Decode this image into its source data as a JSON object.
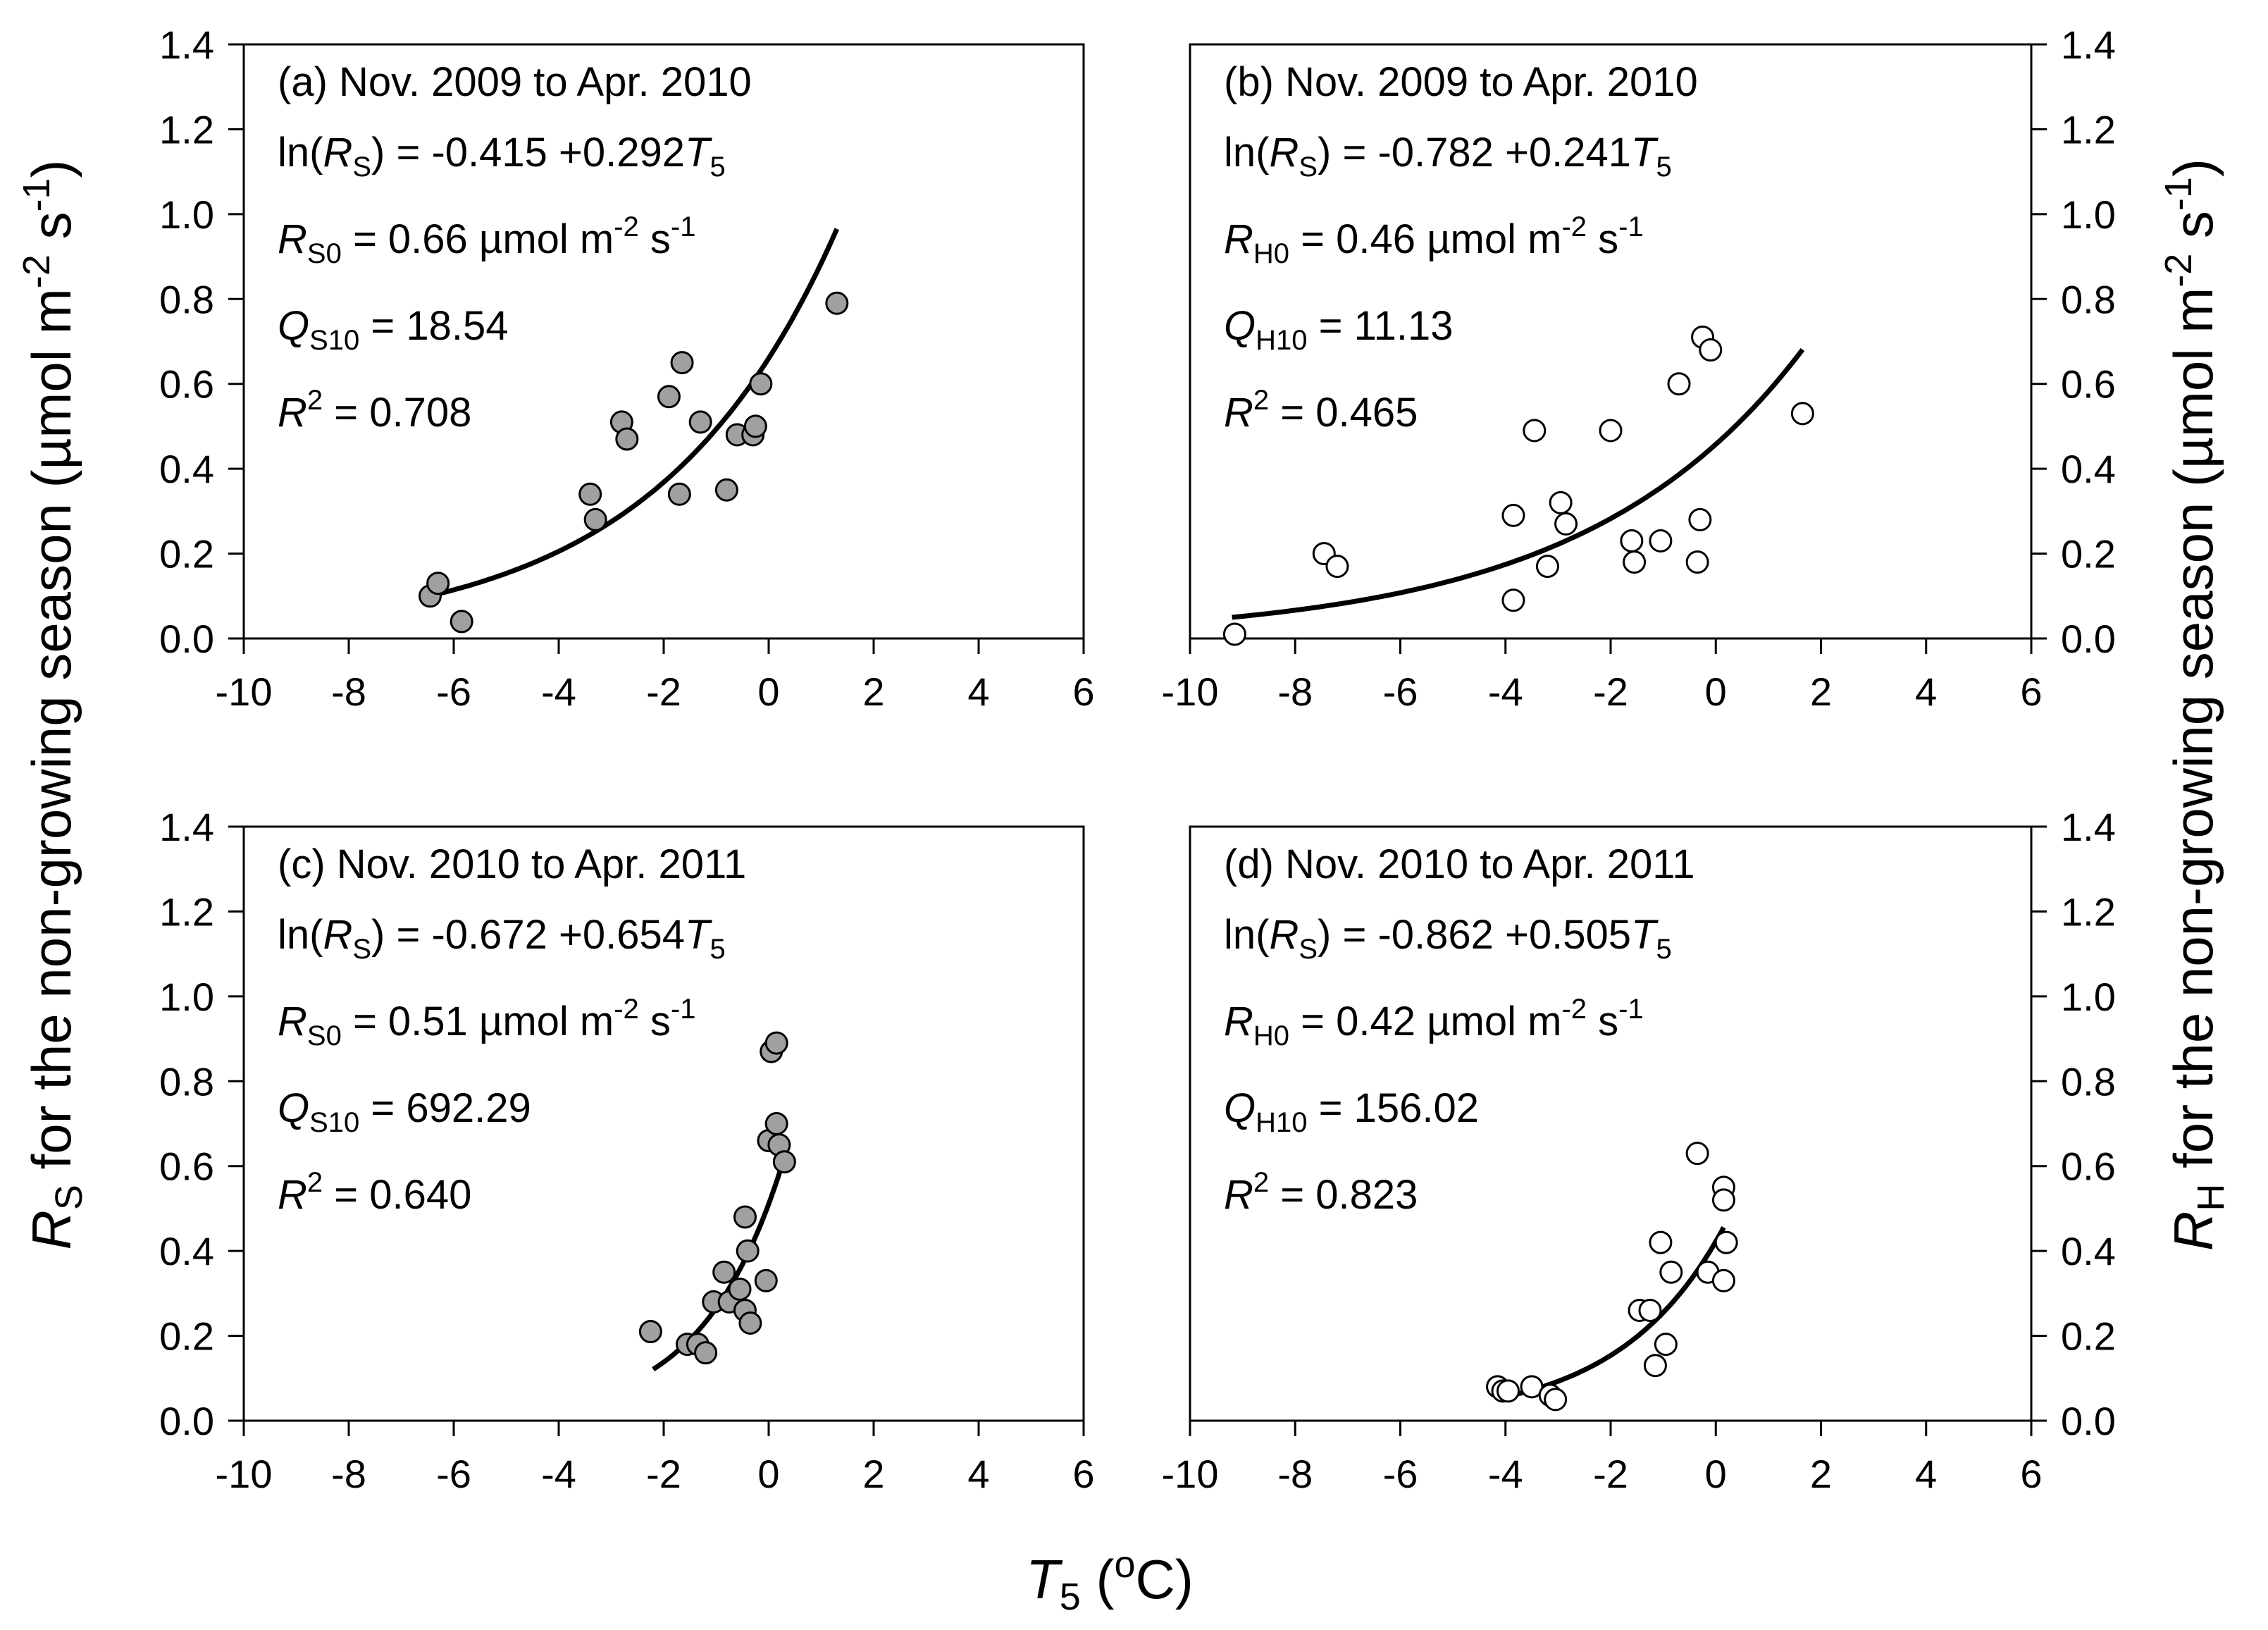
{
  "figure": {
    "ylabel_left": {
      "main": "R",
      "sub": "S",
      "rest": " for the non-growing season (µmol m",
      "sup1": "-2",
      "mid": " s",
      "sup2": "-1",
      "end": ")"
    },
    "ylabel_right": {
      "main": "R",
      "sub": "H",
      "rest": " for the non-growing season (µmol m",
      "sup1": "-2",
      "mid": " s",
      "sup2": "-1",
      "end": ")"
    },
    "xlabel": {
      "main": "T",
      "sub": "5",
      "open": " (",
      "sup": "o",
      "unit": "C)"
    }
  },
  "colors": {
    "filled_marker": "#a0a0a0",
    "open_marker": "#ffffff",
    "line": "#000000",
    "axis": "#000000"
  },
  "chart_data": [
    {
      "type": "scatter",
      "panel": "a",
      "marker": "filled",
      "title": "(a) Nov. 2009 to Apr. 2010",
      "equation": {
        "prefix": "ln(",
        "var": "R",
        "var_sub": "S",
        "middle": ") = -0.415 +0.292",
        "t": "T",
        "t_sub": "5"
      },
      "r0": {
        "var": "R",
        "sub": "S0",
        "text": " = 0.66 µmol m",
        "sup1": "-2",
        "mid": " s",
        "sup2": "-1"
      },
      "q10": {
        "var": "Q",
        "sub": "S10",
        "text": " = 18.54"
      },
      "r2": {
        "var": "R",
        "sup": "2",
        "text": " = 0.708"
      },
      "xlim": [
        -10,
        6
      ],
      "ylim": [
        0,
        1.4
      ],
      "xticks": [
        -10,
        -8,
        -6,
        -4,
        -2,
        0,
        2,
        4,
        6
      ],
      "yticks": [
        0,
        0.2,
        0.4,
        0.6,
        0.8,
        1.0,
        1.2,
        1.4
      ],
      "ytick_labels": [
        "0.0",
        "0.2",
        "0.4",
        "0.6",
        "0.8",
        "1.0",
        "1.2",
        "1.4"
      ],
      "fit": {
        "a": -0.415,
        "b": 0.292,
        "xmin": -6.5,
        "xmax": 1.3
      },
      "points": [
        {
          "x": -6.45,
          "y": 0.1
        },
        {
          "x": -6.3,
          "y": 0.13
        },
        {
          "x": -5.85,
          "y": 0.04
        },
        {
          "x": -3.4,
          "y": 0.34
        },
        {
          "x": -3.3,
          "y": 0.28
        },
        {
          "x": -2.8,
          "y": 0.51
        },
        {
          "x": -2.7,
          "y": 0.47
        },
        {
          "x": -1.9,
          "y": 0.57
        },
        {
          "x": -1.65,
          "y": 0.65
        },
        {
          "x": -1.7,
          "y": 0.34
        },
        {
          "x": -1.3,
          "y": 0.51
        },
        {
          "x": -0.8,
          "y": 0.35
        },
        {
          "x": -0.6,
          "y": 0.48
        },
        {
          "x": -0.3,
          "y": 0.48
        },
        {
          "x": -0.25,
          "y": 0.5
        },
        {
          "x": -0.15,
          "y": 0.6
        },
        {
          "x": 1.3,
          "y": 0.79
        }
      ]
    },
    {
      "type": "scatter",
      "panel": "b",
      "marker": "open",
      "title": "(b) Nov. 2009 to Apr. 2010",
      "equation": {
        "prefix": "ln(",
        "var": "R",
        "var_sub": "S",
        "middle": ") = -0.782 +0.241",
        "t": "T",
        "t_sub": "5"
      },
      "r0": {
        "var": "R",
        "sub": "H0",
        "text": " = 0.46 µmol m",
        "sup1": "-2",
        "mid": " s",
        "sup2": "-1"
      },
      "q10": {
        "var": "Q",
        "sub": "H10",
        "text": " = 11.13"
      },
      "r2": {
        "var": "R",
        "sup": "2",
        "text": " = 0.465"
      },
      "xlim": [
        -10,
        6
      ],
      "ylim": [
        0,
        1.4
      ],
      "xticks": [
        -10,
        -8,
        -6,
        -4,
        -2,
        0,
        2,
        4,
        6
      ],
      "yticks": [
        0,
        0.2,
        0.4,
        0.6,
        0.8,
        1.0,
        1.2,
        1.4
      ],
      "ytick_labels": [
        "0.0",
        "0.2",
        "0.4",
        "0.6",
        "0.8",
        "1.0",
        "1.2",
        "1.4"
      ],
      "fit": {
        "a": -0.782,
        "b": 0.241,
        "xmin": -9.2,
        "xmax": 1.65
      },
      "points": [
        {
          "x": -9.15,
          "y": 0.01
        },
        {
          "x": -7.45,
          "y": 0.2
        },
        {
          "x": -7.2,
          "y": 0.17
        },
        {
          "x": -3.85,
          "y": 0.29
        },
        {
          "x": -3.85,
          "y": 0.09
        },
        {
          "x": -3.45,
          "y": 0.49
        },
        {
          "x": -3.2,
          "y": 0.17
        },
        {
          "x": -2.95,
          "y": 0.32
        },
        {
          "x": -2.85,
          "y": 0.27
        },
        {
          "x": -2.0,
          "y": 0.49
        },
        {
          "x": -1.6,
          "y": 0.23
        },
        {
          "x": -1.55,
          "y": 0.18
        },
        {
          "x": -1.05,
          "y": 0.23
        },
        {
          "x": -0.7,
          "y": 0.6
        },
        {
          "x": -0.35,
          "y": 0.18
        },
        {
          "x": -0.3,
          "y": 0.28
        },
        {
          "x": -0.25,
          "y": 0.71
        },
        {
          "x": -0.1,
          "y": 0.68
        },
        {
          "x": 1.65,
          "y": 0.53
        }
      ]
    },
    {
      "type": "scatter",
      "panel": "c",
      "marker": "filled",
      "title": "(c) Nov. 2010 to Apr. 2011",
      "equation": {
        "prefix": "ln(",
        "var": "R",
        "var_sub": "S",
        "middle": ") = -0.672 +0.654",
        "t": "T",
        "t_sub": "5"
      },
      "r0": {
        "var": "R",
        "sub": "S0",
        "text": " = 0.51 µmol m",
        "sup1": "-2",
        "mid": " s",
        "sup2": "-1"
      },
      "q10": {
        "var": "Q",
        "sub": "S10",
        "text": " = 692.29"
      },
      "r2": {
        "var": "R",
        "sup": "2",
        "text": " = 0.640"
      },
      "xlim": [
        -10,
        6
      ],
      "ylim": [
        0,
        1.4
      ],
      "xticks": [
        -10,
        -8,
        -6,
        -4,
        -2,
        0,
        2,
        4,
        6
      ],
      "yticks": [
        0,
        0.2,
        0.4,
        0.6,
        0.8,
        1.0,
        1.2,
        1.4
      ],
      "ytick_labels": [
        "0.0",
        "0.2",
        "0.4",
        "0.6",
        "0.8",
        "1.0",
        "1.2",
        "1.4"
      ],
      "fit": {
        "a": -0.672,
        "b": 0.654,
        "xmin": -2.2,
        "xmax": 0.25
      },
      "points": [
        {
          "x": -2.25,
          "y": 0.21
        },
        {
          "x": -1.55,
          "y": 0.18
        },
        {
          "x": -1.35,
          "y": 0.18
        },
        {
          "x": -1.2,
          "y": 0.16
        },
        {
          "x": -1.05,
          "y": 0.28
        },
        {
          "x": -0.85,
          "y": 0.35
        },
        {
          "x": -0.75,
          "y": 0.28
        },
        {
          "x": -0.55,
          "y": 0.31
        },
        {
          "x": -0.45,
          "y": 0.48
        },
        {
          "x": -0.45,
          "y": 0.26
        },
        {
          "x": -0.4,
          "y": 0.4
        },
        {
          "x": -0.35,
          "y": 0.23
        },
        {
          "x": -0.05,
          "y": 0.33
        },
        {
          "x": 0.0,
          "y": 0.66
        },
        {
          "x": 0.05,
          "y": 0.87
        },
        {
          "x": 0.15,
          "y": 0.7
        },
        {
          "x": 0.15,
          "y": 0.89
        },
        {
          "x": 0.2,
          "y": 0.65
        },
        {
          "x": 0.3,
          "y": 0.61
        }
      ]
    },
    {
      "type": "scatter",
      "panel": "d",
      "marker": "open",
      "title": "(d) Nov. 2010 to Apr. 2011",
      "equation": {
        "prefix": "ln(",
        "var": "R",
        "var_sub": "S",
        "middle": ") = -0.862 +0.505",
        "t": "T",
        "t_sub": "5"
      },
      "r0": {
        "var": "R",
        "sub": "H0",
        "text": " = 0.42 µmol m",
        "sup1": "-2",
        "mid": " s",
        "sup2": "-1"
      },
      "q10": {
        "var": "Q",
        "sub": "H10",
        "text": " = 156.02"
      },
      "r2": {
        "var": "R",
        "sup": "2",
        "text": " = 0.823"
      },
      "xlim": [
        -10,
        6
      ],
      "ylim": [
        0,
        1.4
      ],
      "xticks": [
        -10,
        -8,
        -6,
        -4,
        -2,
        0,
        2,
        4,
        6
      ],
      "yticks": [
        0,
        0.2,
        0.4,
        0.6,
        0.8,
        1.0,
        1.2,
        1.4
      ],
      "ytick_labels": [
        "0.0",
        "0.2",
        "0.4",
        "0.6",
        "0.8",
        "1.0",
        "1.2",
        "1.4"
      ],
      "fit": {
        "a": -0.862,
        "b": 0.505,
        "xmin": -3.9,
        "xmax": 0.15
      },
      "points": [
        {
          "x": -4.15,
          "y": 0.08
        },
        {
          "x": -4.05,
          "y": 0.07
        },
        {
          "x": -3.95,
          "y": 0.07
        },
        {
          "x": -3.5,
          "y": 0.08
        },
        {
          "x": -3.15,
          "y": 0.06
        },
        {
          "x": -3.05,
          "y": 0.05
        },
        {
          "x": -1.45,
          "y": 0.26
        },
        {
          "x": -1.25,
          "y": 0.26
        },
        {
          "x": -1.15,
          "y": 0.13
        },
        {
          "x": -1.05,
          "y": 0.42
        },
        {
          "x": -0.95,
          "y": 0.18
        },
        {
          "x": -0.85,
          "y": 0.35
        },
        {
          "x": -0.35,
          "y": 0.63
        },
        {
          "x": -0.15,
          "y": 0.35
        },
        {
          "x": 0.15,
          "y": 0.55
        },
        {
          "x": 0.15,
          "y": 0.52
        },
        {
          "x": 0.15,
          "y": 0.33
        },
        {
          "x": 0.2,
          "y": 0.42
        }
      ]
    }
  ]
}
